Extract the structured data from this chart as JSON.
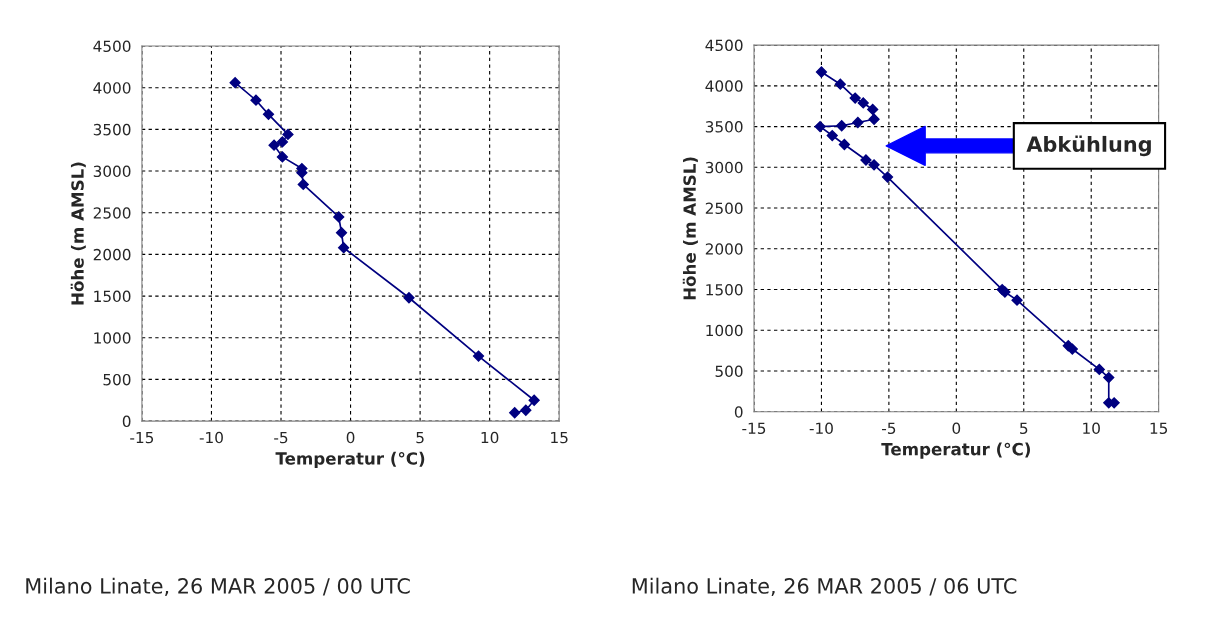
{
  "chart_data": [
    {
      "type": "line",
      "xlabel": "Temperatur (°C)",
      "ylabel": "Höhe (m AMSL)",
      "xlim": [
        -15,
        15
      ],
      "xticks": [
        -15,
        -10,
        -5,
        0,
        5,
        10,
        15
      ],
      "ylim": [
        0,
        4500
      ],
      "yticks": [
        0,
        500,
        1000,
        1500,
        2000,
        2500,
        3000,
        3500,
        4000,
        4500
      ],
      "grid": true,
      "marker": "diamond",
      "line_style": "solid",
      "legend": false,
      "series": [
        {
          "color": "#000080",
          "x": [
            11.8,
            12.6,
            13.2,
            9.2,
            4.2,
            -0.5,
            -0.65,
            -0.85,
            -3.4,
            -3.5,
            -3.5,
            -4.9,
            -5.5,
            -4.9,
            -4.5,
            -5.9,
            -6.8,
            -8.3
          ],
          "values": [
            100,
            130,
            250,
            780,
            1480,
            2080,
            2260,
            2450,
            2840,
            2980,
            3030,
            3170,
            3310,
            3350,
            3440,
            3680,
            3850,
            4060
          ]
        }
      ],
      "annotations": [
        "Milano Linate, 26 MAR 2005 / 00 UTC"
      ]
    },
    {
      "type": "line",
      "xlabel": "Temperatur (°C)",
      "ylabel": "Höhe (m AMSL)",
      "xlim": [
        -15,
        15
      ],
      "xticks": [
        -15,
        -10,
        -5,
        0,
        5,
        10,
        15
      ],
      "ylim": [
        0,
        4500
      ],
      "yticks": [
        0,
        500,
        1000,
        1500,
        2000,
        2500,
        3000,
        3500,
        4000,
        4500
      ],
      "grid": true,
      "marker": "diamond",
      "line_style": "solid",
      "legend": false,
      "series": [
        {
          "color": "#000080",
          "x": [
            11.7,
            11.3,
            11.3,
            10.6,
            8.6,
            8.3,
            4.5,
            3.6,
            3.4,
            -5.1,
            -6.1,
            -6.7,
            -8.3,
            -9.2,
            -10.1,
            -8.5,
            -7.3,
            -6.1,
            -6.2,
            -6.9,
            -7.5,
            -8.6,
            -10
          ],
          "values": [
            110,
            110,
            420,
            520,
            770,
            810,
            1370,
            1470,
            1500,
            2880,
            3030,
            3090,
            3280,
            3390,
            3500,
            3510,
            3550,
            3590,
            3710,
            3790,
            3850,
            4020,
            4170
          ]
        }
      ],
      "annotations": [
        "Abkühlung",
        "Milano Linate, 26 MAR 2005 / 06 UTC"
      ]
    }
  ]
}
